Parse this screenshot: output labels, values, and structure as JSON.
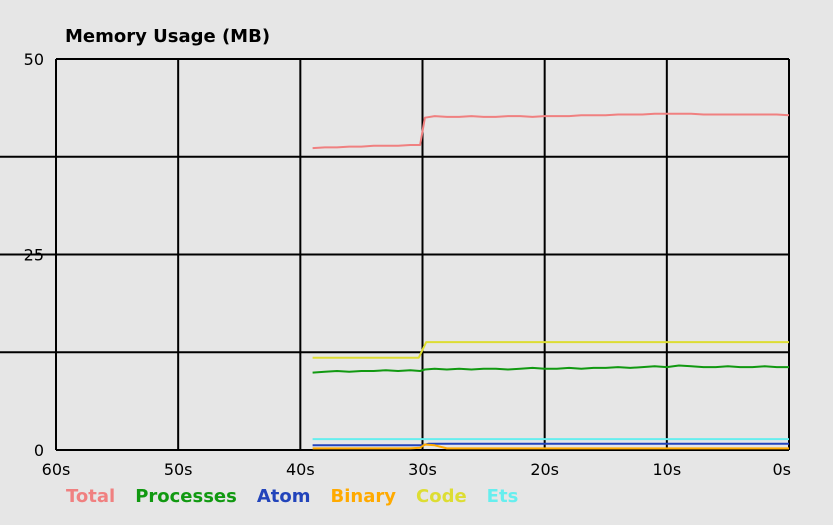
{
  "chart_data": {
    "type": "line",
    "title": "Memory Usage (MB)",
    "xlabel": "",
    "ylabel": "",
    "x_ticks": [
      "60s",
      "50s",
      "40s",
      "30s",
      "20s",
      "10s",
      "0s"
    ],
    "y_ticks": [
      "50",
      "25",
      "0"
    ],
    "x_range_seconds_ago": [
      60,
      0
    ],
    "ylim": [
      0,
      50
    ],
    "grid": true,
    "legend_position": "bottom",
    "series": [
      {
        "name": "Total",
        "color": "#f08080",
        "x": [
          39,
          38,
          37,
          36,
          35,
          34,
          33,
          32,
          31,
          30.2,
          29.8,
          29,
          28,
          27,
          26,
          25,
          24,
          23,
          22,
          21,
          20,
          19,
          18,
          17,
          16,
          15,
          14,
          13,
          12,
          11,
          10,
          9,
          8,
          7,
          6,
          5,
          4,
          3,
          2,
          1,
          0
        ],
        "values": [
          38.6,
          38.7,
          38.7,
          38.8,
          38.8,
          38.9,
          38.9,
          38.9,
          39.0,
          39.0,
          42.5,
          42.7,
          42.6,
          42.6,
          42.7,
          42.6,
          42.6,
          42.7,
          42.7,
          42.6,
          42.7,
          42.7,
          42.7,
          42.8,
          42.8,
          42.8,
          42.9,
          42.9,
          42.9,
          43.0,
          43.0,
          43.0,
          43.0,
          42.9,
          42.9,
          42.9,
          42.9,
          42.9,
          42.9,
          42.9,
          42.8
        ]
      },
      {
        "name": "Processes",
        "color": "#119911",
        "x": [
          39,
          38,
          37,
          36,
          35,
          34,
          33,
          32,
          31,
          30.2,
          29.8,
          29,
          28,
          27,
          26,
          25,
          24,
          23,
          22,
          21,
          20,
          19,
          18,
          17,
          16,
          15,
          14,
          13,
          12,
          11,
          10,
          9,
          8,
          7,
          6,
          5,
          4,
          3,
          2,
          1,
          0
        ],
        "values": [
          9.9,
          10.0,
          10.1,
          10.0,
          10.1,
          10.1,
          10.2,
          10.1,
          10.2,
          10.1,
          10.3,
          10.4,
          10.3,
          10.4,
          10.3,
          10.4,
          10.4,
          10.3,
          10.4,
          10.5,
          10.4,
          10.4,
          10.5,
          10.4,
          10.5,
          10.5,
          10.6,
          10.5,
          10.6,
          10.7,
          10.6,
          10.8,
          10.7,
          10.6,
          10.6,
          10.7,
          10.6,
          10.6,
          10.7,
          10.6,
          10.6
        ]
      },
      {
        "name": "Atom",
        "color": "#2244bb",
        "x": [
          39,
          30,
          29.5,
          0
        ],
        "values": [
          0.6,
          0.6,
          0.8,
          0.8
        ]
      },
      {
        "name": "Binary",
        "color": "#ffaa00",
        "x": [
          39,
          31,
          30.2,
          29.8,
          29,
          28,
          20,
          10,
          0
        ],
        "values": [
          0.2,
          0.2,
          0.3,
          0.7,
          0.6,
          0.2,
          0.2,
          0.2,
          0.2
        ]
      },
      {
        "name": "Code",
        "color": "#dddd33",
        "x": [
          39,
          30.3,
          29.7,
          20,
          10,
          0
        ],
        "values": [
          11.8,
          11.8,
          13.8,
          13.8,
          13.8,
          13.8
        ]
      },
      {
        "name": "Ets",
        "color": "#66eeee",
        "x": [
          39,
          30,
          20,
          10,
          0
        ],
        "values": [
          1.4,
          1.4,
          1.4,
          1.4,
          1.4
        ]
      }
    ]
  }
}
